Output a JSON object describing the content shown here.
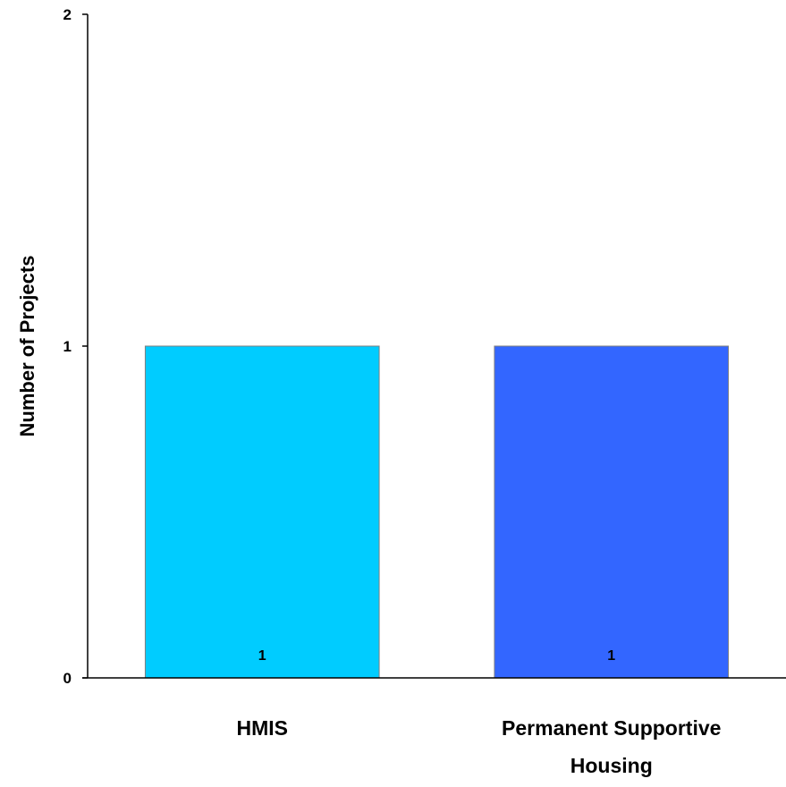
{
  "chart_data": {
    "type": "bar",
    "title": "",
    "xlabel": "",
    "ylabel": "Number of Projects",
    "categories": [
      "HMIS",
      "Permanent Supportive Housing"
    ],
    "category_lines": [
      [
        "HMIS"
      ],
      [
        "Permanent Supportive",
        "Housing"
      ]
    ],
    "values": [
      1,
      1
    ],
    "data_labels": [
      "1",
      "1"
    ],
    "bar_colors": [
      "#00CCFF",
      "#3366FF"
    ],
    "ylim": [
      0,
      2
    ],
    "yticks": [
      0,
      1,
      2
    ],
    "grid": false,
    "legend": "none"
  }
}
